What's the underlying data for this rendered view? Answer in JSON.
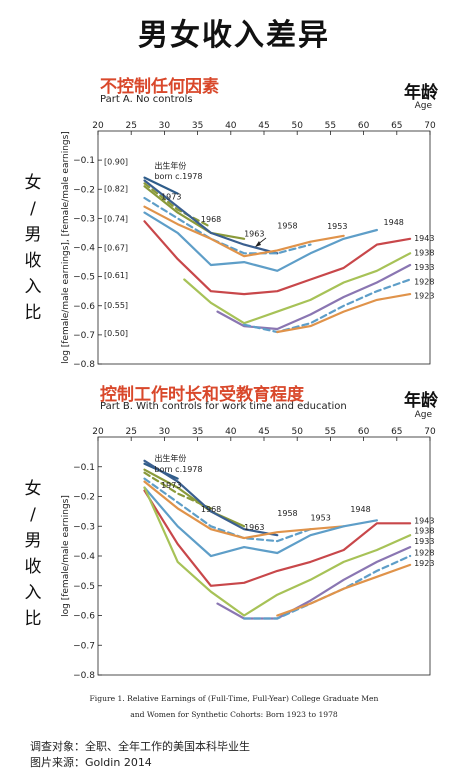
{
  "title": "男女收入差异",
  "ratio_label_chars": [
    "女",
    "/",
    "男",
    "收",
    "入",
    "比"
  ],
  "age_cn": "年龄",
  "age_en": "Age",
  "caption": {
    "line1": "Figure 1. Relative Earnings of (Full-Time, Full-Year) College Graduate Men",
    "line2": "and Women for Synthetic Cohorts: Born 1923 to 1978"
  },
  "footer": {
    "survey": "调查对象：全职、全年工作的美国本科毕业生",
    "source": "图片来源：Goldin 2014"
  },
  "chart_data": [
    {
      "type": "line",
      "title_cn": "不控制任何因素",
      "subtitle": "Part A. No controls",
      "ylabel": "log [female/male earnings], [female/male earnings]",
      "xlim": [
        20,
        70
      ],
      "ylim": [
        -0.8,
        0
      ],
      "x_ticks": [
        20,
        25,
        30,
        35,
        40,
        45,
        50,
        55,
        60,
        65,
        70
      ],
      "y_ticks": [
        -0.1,
        -0.2,
        -0.3,
        -0.4,
        -0.5,
        -0.6,
        -0.7,
        -0.8
      ],
      "y_ticks_labels": [
        "−0.1",
        "−0.2",
        "−0.3",
        "−0.4",
        "−0.5",
        "−0.6",
        "−0.7",
        "−0.8"
      ],
      "ratio_ticks": [
        {
          "y": -0.105,
          "label": "[0.90]"
        },
        {
          "y": -0.198,
          "label": "[0.82]"
        },
        {
          "y": -0.301,
          "label": "[0.74]"
        },
        {
          "y": -0.4,
          "label": "[0.67]"
        },
        {
          "y": -0.494,
          "label": "[0.61]"
        },
        {
          "y": -0.598,
          "label": "[0.55]"
        },
        {
          "y": -0.693,
          "label": "[0.50]"
        }
      ],
      "annotations": [
        {
          "text": "出生年份",
          "x": 28.5,
          "y": -0.128
        },
        {
          "text": "born c.1978",
          "x": 28.5,
          "y": -0.165
        },
        {
          "text": "1973",
          "x": 29.5,
          "y": -0.236
        },
        {
          "text": "1968",
          "x": 35.5,
          "y": -0.313
        },
        {
          "text": "1963",
          "x": 42.0,
          "y": -0.362
        },
        {
          "text": "1958",
          "x": 47.0,
          "y": -0.334
        },
        {
          "text": "1953",
          "x": 54.5,
          "y": -0.337
        },
        {
          "text": "1948",
          "x": 63.0,
          "y": -0.322
        },
        {
          "text": "1943",
          "x": 67.6,
          "y": -0.377
        },
        {
          "text": "1938",
          "x": 67.6,
          "y": -0.427
        },
        {
          "text": "1933",
          "x": 67.6,
          "y": -0.477
        },
        {
          "text": "1928",
          "x": 67.6,
          "y": -0.527
        },
        {
          "text": "1923",
          "x": 67.6,
          "y": -0.575
        }
      ],
      "series": [
        {
          "cohort": "1978",
          "color": "#2f5d8a",
          "dash": false,
          "points": [
            [
              27,
              -0.16
            ],
            [
              32,
              -0.215
            ]
          ]
        },
        {
          "cohort": "1973",
          "color": "#8a9a3a",
          "dash": true,
          "points": [
            [
              27,
              -0.18
            ],
            [
              32,
              -0.27
            ],
            [
              37,
              -0.33
            ]
          ]
        },
        {
          "cohort": "1968",
          "color": "#8a9a3a",
          "dash": false,
          "points": [
            [
              27,
              -0.19
            ],
            [
              32,
              -0.28
            ],
            [
              37,
              -0.35
            ],
            [
              42,
              -0.37
            ]
          ]
        },
        {
          "cohort": "1963",
          "color": "#3a5f8f",
          "dash": false,
          "points": [
            [
              27,
              -0.17
            ],
            [
              32,
              -0.26
            ],
            [
              37,
              -0.35
            ],
            [
              42,
              -0.39
            ],
            [
              47,
              -0.42
            ]
          ]
        },
        {
          "cohort": "1958",
          "color": "#5e9ec8",
          "dash": true,
          "points": [
            [
              27,
              -0.23
            ],
            [
              32,
              -0.3
            ],
            [
              37,
              -0.37
            ],
            [
              42,
              -0.42
            ],
            [
              47,
              -0.42
            ],
            [
              52,
              -0.39
            ]
          ]
        },
        {
          "cohort": "1953",
          "color": "#e0934a",
          "dash": false,
          "points": [
            [
              27,
              -0.26
            ],
            [
              32,
              -0.32
            ],
            [
              37,
              -0.37
            ],
            [
              42,
              -0.43
            ],
            [
              47,
              -0.41
            ],
            [
              52,
              -0.38
            ],
            [
              57,
              -0.36
            ]
          ]
        },
        {
          "cohort": "1948",
          "color": "#5e9ec8",
          "dash": false,
          "points": [
            [
              27,
              -0.28
            ],
            [
              32,
              -0.35
            ],
            [
              37,
              -0.46
            ],
            [
              42,
              -0.45
            ],
            [
              47,
              -0.48
            ],
            [
              52,
              -0.42
            ],
            [
              57,
              -0.37
            ],
            [
              62,
              -0.34
            ]
          ]
        },
        {
          "cohort": "1943",
          "color": "#c8474a",
          "dash": false,
          "points": [
            [
              27,
              -0.31
            ],
            [
              32,
              -0.44
            ],
            [
              37,
              -0.55
            ],
            [
              42,
              -0.56
            ],
            [
              47,
              -0.55
            ],
            [
              52,
              -0.51
            ],
            [
              57,
              -0.47
            ],
            [
              62,
              -0.39
            ],
            [
              67,
              -0.37
            ]
          ]
        },
        {
          "cohort": "1938",
          "color": "#a7c257",
          "dash": false,
          "points": [
            [
              33,
              -0.51
            ],
            [
              37,
              -0.59
            ],
            [
              42,
              -0.66
            ],
            [
              47,
              -0.62
            ],
            [
              52,
              -0.58
            ],
            [
              57,
              -0.52
            ],
            [
              62,
              -0.48
            ],
            [
              67,
              -0.42
            ]
          ]
        },
        {
          "cohort": "1933",
          "color": "#8a76b2",
          "dash": false,
          "points": [
            [
              38,
              -0.62
            ],
            [
              42,
              -0.67
            ],
            [
              47,
              -0.68
            ],
            [
              52,
              -0.63
            ],
            [
              57,
              -0.57
            ],
            [
              62,
              -0.52
            ],
            [
              67,
              -0.46
            ]
          ]
        },
        {
          "cohort": "1928",
          "color": "#5e9ec8",
          "dash": true,
          "points": [
            [
              42,
              -0.665
            ],
            [
              47,
              -0.69
            ],
            [
              52,
              -0.66
            ],
            [
              57,
              -0.6
            ],
            [
              62,
              -0.55
            ],
            [
              67,
              -0.51
            ]
          ]
        },
        {
          "cohort": "1923",
          "color": "#e0934a",
          "dash": false,
          "points": [
            [
              47,
              -0.69
            ],
            [
              52,
              -0.67
            ],
            [
              57,
              -0.62
            ],
            [
              62,
              -0.58
            ],
            [
              67,
              -0.56
            ]
          ]
        }
      ]
    },
    {
      "type": "line",
      "title_cn": "控制工作时长和受教育程度",
      "subtitle": "Part B. With controls for work time and education",
      "ylabel": "log [female/male earnings]",
      "xlim": [
        20,
        70
      ],
      "ylim": [
        -0.8,
        0
      ],
      "x_ticks": [
        20,
        25,
        30,
        35,
        40,
        45,
        50,
        55,
        60,
        65,
        70
      ],
      "y_ticks": [
        -0.1,
        -0.2,
        -0.3,
        -0.4,
        -0.5,
        -0.6,
        -0.7,
        -0.8
      ],
      "y_ticks_labels": [
        "−0.1",
        "−0.2",
        "−0.3",
        "−0.4",
        "−0.5",
        "−0.6",
        "−0.7",
        "−0.8"
      ],
      "ratio_ticks": [],
      "annotations": [
        {
          "text": "出生年份",
          "x": 28.5,
          "y": -0.08
        },
        {
          "text": "born c.1978",
          "x": 28.5,
          "y": -0.118
        },
        {
          "text": "1973",
          "x": 29.5,
          "y": -0.172
        },
        {
          "text": "1968",
          "x": 35.5,
          "y": -0.252
        },
        {
          "text": "1963",
          "x": 42.0,
          "y": -0.312
        },
        {
          "text": "1958",
          "x": 47.0,
          "y": -0.265
        },
        {
          "text": "1953",
          "x": 52.0,
          "y": -0.28
        },
        {
          "text": "1948",
          "x": 58.0,
          "y": -0.252
        },
        {
          "text": "1943",
          "x": 67.6,
          "y": -0.29
        },
        {
          "text": "1938",
          "x": 67.6,
          "y": -0.325
        },
        {
          "text": "1933",
          "x": 67.6,
          "y": -0.36
        },
        {
          "text": "1928",
          "x": 67.6,
          "y": -0.398
        },
        {
          "text": "1923",
          "x": 67.6,
          "y": -0.433
        }
      ],
      "series": [
        {
          "cohort": "1978",
          "color": "#2f5d8a",
          "dash": false,
          "points": [
            [
              27,
              -0.09
            ],
            [
              32,
              -0.14
            ]
          ]
        },
        {
          "cohort": "1973",
          "color": "#8a9a3a",
          "dash": true,
          "points": [
            [
              27,
              -0.12
            ],
            [
              32,
              -0.19
            ],
            [
              37,
              -0.24
            ]
          ]
        },
        {
          "cohort": "1968",
          "color": "#8a9a3a",
          "dash": false,
          "points": [
            [
              27,
              -0.11
            ],
            [
              32,
              -0.17
            ],
            [
              37,
              -0.25
            ],
            [
              42,
              -0.3
            ]
          ]
        },
        {
          "cohort": "1963",
          "color": "#3a5f8f",
          "dash": false,
          "points": [
            [
              27,
              -0.08
            ],
            [
              32,
              -0.15
            ],
            [
              37,
              -0.25
            ],
            [
              42,
              -0.31
            ],
            [
              47,
              -0.33
            ]
          ]
        },
        {
          "cohort": "1958",
          "color": "#5e9ec8",
          "dash": true,
          "points": [
            [
              27,
              -0.14
            ],
            [
              32,
              -0.22
            ],
            [
              37,
              -0.3
            ],
            [
              42,
              -0.34
            ],
            [
              47,
              -0.35
            ],
            [
              52,
              -0.31
            ]
          ]
        },
        {
          "cohort": "1953",
          "color": "#e0934a",
          "dash": false,
          "points": [
            [
              27,
              -0.15
            ],
            [
              32,
              -0.24
            ],
            [
              37,
              -0.31
            ],
            [
              42,
              -0.34
            ],
            [
              47,
              -0.32
            ],
            [
              52,
              -0.31
            ],
            [
              57,
              -0.3
            ]
          ]
        },
        {
          "cohort": "1948",
          "color": "#5e9ec8",
          "dash": false,
          "points": [
            [
              27,
              -0.17
            ],
            [
              32,
              -0.3
            ],
            [
              37,
              -0.4
            ],
            [
              42,
              -0.37
            ],
            [
              47,
              -0.39
            ],
            [
              52,
              -0.33
            ],
            [
              57,
              -0.3
            ],
            [
              62,
              -0.28
            ]
          ]
        },
        {
          "cohort": "1943",
          "color": "#c8474a",
          "dash": false,
          "points": [
            [
              27,
              -0.18
            ],
            [
              32,
              -0.36
            ],
            [
              37,
              -0.5
            ],
            [
              42,
              -0.49
            ],
            [
              47,
              -0.45
            ],
            [
              52,
              -0.42
            ],
            [
              57,
              -0.38
            ],
            [
              62,
              -0.29
            ],
            [
              67,
              -0.29
            ]
          ]
        },
        {
          "cohort": "1938",
          "color": "#a7c257",
          "dash": false,
          "points": [
            [
              27,
              -0.17
            ],
            [
              32,
              -0.42
            ],
            [
              37,
              -0.52
            ],
            [
              42,
              -0.6
            ],
            [
              47,
              -0.53
            ],
            [
              52,
              -0.48
            ],
            [
              57,
              -0.42
            ],
            [
              62,
              -0.38
            ],
            [
              67,
              -0.33
            ]
          ]
        },
        {
          "cohort": "1933",
          "color": "#8a76b2",
          "dash": false,
          "points": [
            [
              38,
              -0.56
            ],
            [
              42,
              -0.61
            ],
            [
              47,
              -0.61
            ],
            [
              52,
              -0.55
            ],
            [
              57,
              -0.48
            ],
            [
              62,
              -0.42
            ],
            [
              67,
              -0.37
            ]
          ]
        },
        {
          "cohort": "1928",
          "color": "#5e9ec8",
          "dash": true,
          "points": [
            [
              42,
              -0.61
            ],
            [
              47,
              -0.61
            ],
            [
              52,
              -0.56
            ],
            [
              57,
              -0.51
            ],
            [
              62,
              -0.45
            ],
            [
              67,
              -0.4
            ]
          ]
        },
        {
          "cohort": "1923",
          "color": "#e0934a",
          "dash": false,
          "points": [
            [
              47,
              -0.6
            ],
            [
              52,
              -0.56
            ],
            [
              57,
              -0.51
            ],
            [
              62,
              -0.47
            ],
            [
              67,
              -0.43
            ]
          ]
        }
      ]
    }
  ]
}
